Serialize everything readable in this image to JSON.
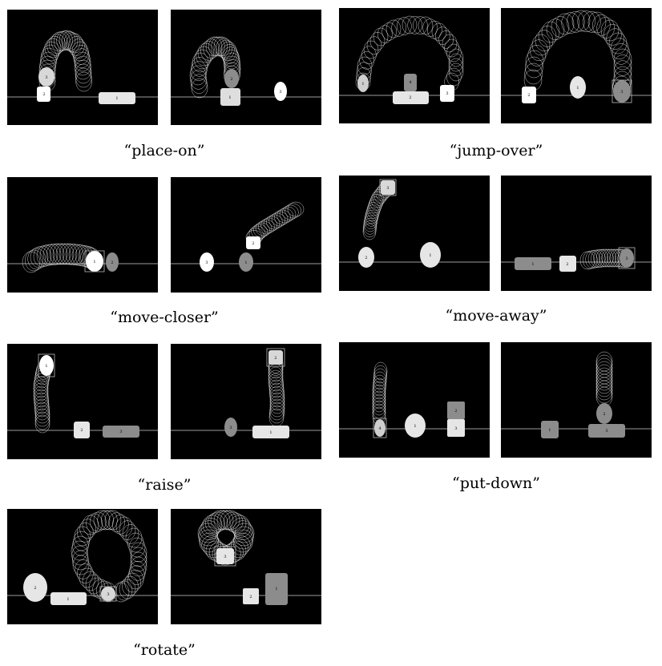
{
  "captions": {
    "place_on": "“place-on”",
    "jump_over": "“jump-over”",
    "move_closer": "“move-closer”",
    "move_away": "“move-away”",
    "raise": "“raise”",
    "put_down": "“put-down”",
    "rotate": "“rotate”"
  },
  "colors": {
    "panel_bg": "#000000",
    "ground_line": "#cfcfcf",
    "trail": "#ffffff"
  },
  "object_labels": {
    "p1a": {
      "o1": "1",
      "o2": "2",
      "o3": "3"
    },
    "p1b": {
      "o1": "1",
      "o2": "2",
      "o3": "3"
    },
    "p2a": {
      "o1": "1",
      "o2": "2",
      "o3": "3",
      "o4": "4"
    },
    "p2b": {
      "o1": "1",
      "o2": "2",
      "o3": "3"
    },
    "p3a": {
      "o1": "1",
      "o2": "2"
    },
    "p3b": {
      "o1": "1",
      "o2": "2",
      "o3": "3"
    },
    "p4a": {
      "o1": "1",
      "o2": "2",
      "o3": "3"
    },
    "p4b": {
      "o1": "1",
      "o2": "2",
      "o3": "3"
    },
    "p5a": {
      "o1": "1",
      "o2": "2",
      "o3": "3"
    },
    "p5b": {
      "o1": "1",
      "o2": "2",
      "o3": "3"
    },
    "p6a": {
      "o1": "1",
      "o2": "2",
      "o3": "3",
      "o4": "4"
    },
    "p6b": {
      "o1": "1",
      "o2": "2",
      "o3": "3"
    },
    "p7a": {
      "o1": "1",
      "o2": "2",
      "o3": "3"
    },
    "p7b": {
      "o1": "1",
      "o2": "2",
      "o3": "3"
    }
  }
}
